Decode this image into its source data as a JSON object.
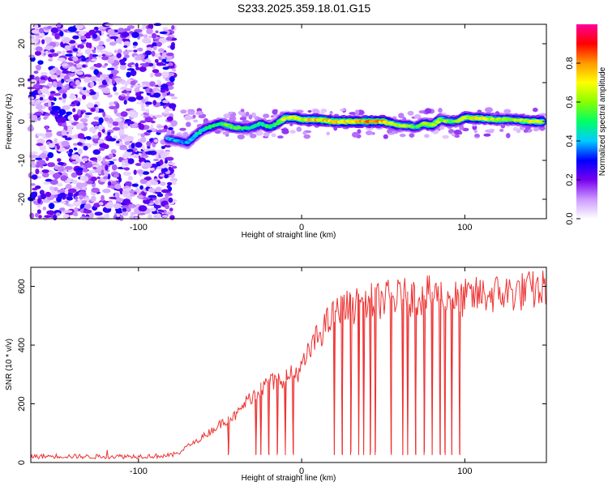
{
  "title": "S233.2025.359.18.01.G15",
  "chart_data": [
    {
      "type": "heatmap",
      "xlabel": "Height of straight line (km)",
      "ylabel": "Frequency (Hz)",
      "xlim": [
        -166,
        150
      ],
      "ylim": [
        -25,
        25
      ],
      "x_ticks": [
        -100,
        0,
        100
      ],
      "y_ticks": [
        -20,
        -10,
        0,
        10,
        20
      ],
      "noise_region_x": [
        -166,
        -80
      ],
      "signal_track": {
        "x": [
          -82,
          -75,
          -70,
          -65,
          -60,
          -50,
          -42,
          -35,
          -30,
          -25,
          -20,
          -15,
          -10,
          -5,
          0,
          10,
          20,
          30,
          40,
          50,
          60,
          65,
          70,
          75,
          80,
          85,
          90,
          95,
          100,
          110,
          120,
          130,
          140,
          148
        ],
        "y": [
          -4.5,
          -5.0,
          -5.5,
          -3.5,
          -2.0,
          -0.5,
          -1.5,
          -1.8,
          -1.5,
          -0.5,
          -1.5,
          -0.5,
          1.0,
          1.0,
          0.5,
          0.5,
          0.0,
          0.0,
          0.0,
          0.0,
          -1.0,
          -1.0,
          -1.5,
          -0.5,
          -1.0,
          0.5,
          0.0,
          0.0,
          1.0,
          0.8,
          0.5,
          0.5,
          0.0,
          0.0
        ],
        "amplitude": [
          0.45,
          0.5,
          0.45,
          0.5,
          0.55,
          0.6,
          0.7,
          0.65,
          0.55,
          0.6,
          0.65,
          0.6,
          0.8,
          0.85,
          0.8,
          0.9,
          0.85,
          0.9,
          0.95,
          0.9,
          0.7,
          0.75,
          0.6,
          0.7,
          0.8,
          0.75,
          0.7,
          0.65,
          0.8,
          0.85,
          0.75,
          0.7,
          0.8,
          0.85
        ]
      },
      "colorbar": {
        "label": "Normalized spectral amplitude",
        "range": [
          0.0,
          1.0
        ],
        "ticks": [
          "0.0",
          "0.2",
          "0.4",
          "0.6",
          "0.8"
        ],
        "colors": [
          "#ffffff",
          "#cc99ff",
          "#7700ee",
          "#0000ff",
          "#00ccff",
          "#00ff66",
          "#88ff00",
          "#ffff00",
          "#ff9900",
          "#ff0000",
          "#ff0099"
        ]
      }
    },
    {
      "type": "line",
      "xlabel": "Height of straight line (km)",
      "ylabel": "SNR (10 * v/v)",
      "xlim": [
        -166,
        150
      ],
      "ylim": [
        0,
        665
      ],
      "x_ticks": [
        -100,
        0,
        100
      ],
      "y_ticks": [
        0,
        200,
        400,
        600
      ],
      "line_color": "#ee3333",
      "series": [
        {
          "name": "SNR",
          "x": [
            -166,
            -150,
            -130,
            -110,
            -90,
            -80,
            -75,
            -70,
            -65,
            -60,
            -55,
            -50,
            -45,
            -40,
            -35,
            -30,
            -25,
            -20,
            -15,
            -10,
            -5,
            0,
            5,
            10,
            15,
            20,
            25,
            30,
            40,
            50,
            60,
            70,
            80,
            90,
            100,
            110,
            120,
            130,
            140,
            150
          ],
          "values": [
            20,
            22,
            20,
            21,
            22,
            24,
            35,
            55,
            70,
            90,
            110,
            130,
            150,
            160,
            200,
            230,
            250,
            270,
            280,
            290,
            300,
            320,
            380,
            430,
            470,
            500,
            520,
            530,
            545,
            555,
            560,
            565,
            570,
            560,
            560,
            570,
            575,
            580,
            585,
            590
          ]
        }
      ],
      "dropouts_x": [
        -45,
        -28,
        -25,
        -20,
        -15,
        -10,
        -5,
        20,
        25,
        30,
        35,
        38,
        42,
        45,
        55,
        62,
        65,
        70,
        75,
        80,
        85,
        88,
        92,
        97
      ],
      "dropout_level": 25
    }
  ]
}
